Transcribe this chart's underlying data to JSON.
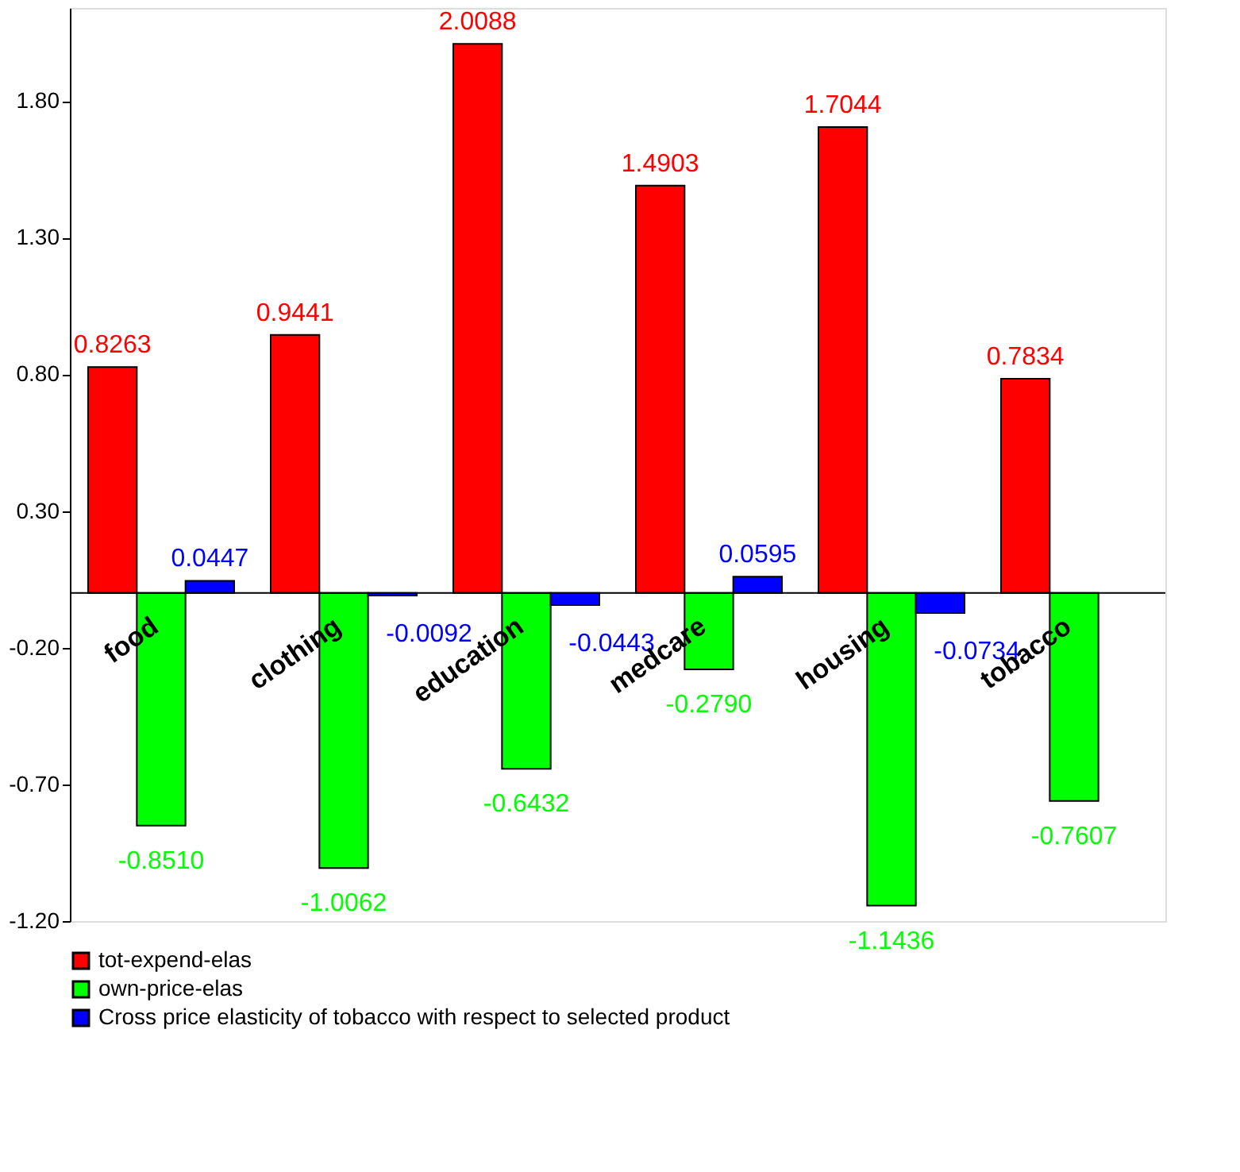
{
  "chart_data": {
    "type": "bar",
    "categories": [
      "food",
      "clothing",
      "education",
      "medcare",
      "housing",
      "tobacco"
    ],
    "series": [
      {
        "name": "tot-expend-elas",
        "color": "#ff0000",
        "values": [
          0.8263,
          0.9441,
          2.0088,
          1.4903,
          1.7044,
          0.7834
        ],
        "value_labels": [
          "0.8263",
          "0.9441",
          "2.0088",
          "1.4903",
          "1.7044",
          "0.7834"
        ]
      },
      {
        "name": "own-price-elas",
        "color": "#00ff00",
        "values": [
          -0.851,
          -1.0062,
          -0.6432,
          -0.279,
          -1.1436,
          -0.7607
        ],
        "value_labels": [
          "-0.8510",
          "-1.0062",
          "-0.6432",
          "-0.2790",
          "-1.1436",
          "-0.7607"
        ]
      },
      {
        "name": "Cross price elasticity of tobacco with respect to selected product",
        "color": "#0000ff",
        "values": [
          0.0447,
          -0.0092,
          -0.0443,
          0.0595,
          -0.0734,
          null
        ],
        "value_labels": [
          "0.0447",
          "-0.0092",
          "-0.0443",
          "0.0595",
          "-0.0734",
          null
        ]
      }
    ],
    "ylim": [
      -1.2,
      2.14
    ],
    "yticks": [
      {
        "value": -1.2,
        "label": "-1.20"
      },
      {
        "value": -0.7,
        "label": "-0.70"
      },
      {
        "value": -0.2,
        "label": "-0.20"
      },
      {
        "value": 0.3,
        "label": "0.30"
      },
      {
        "value": 0.8,
        "label": "0.80"
      },
      {
        "value": 1.3,
        "label": "1.30"
      },
      {
        "value": 1.8,
        "label": "1.80"
      }
    ],
    "grid": false,
    "legend": "bottom left"
  }
}
